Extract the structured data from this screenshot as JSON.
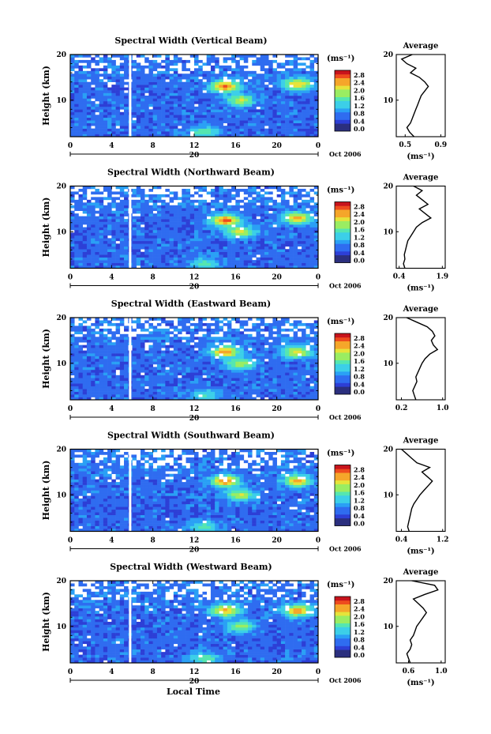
{
  "figure": {
    "ylabel": "Height (km)",
    "xlabel": "Local Time",
    "date_label": "Oct 2006",
    "day_label": "20",
    "colorbar_unit": "(ms⁻¹)",
    "colorbar_ticks": [
      "2.8",
      "2.4",
      "2.0",
      "1.6",
      "1.2",
      "0.8",
      "0.4",
      "0.0"
    ],
    "x_ticks": [
      "0",
      "4",
      "8",
      "12",
      "16",
      "20",
      "0"
    ],
    "y_ticks": [
      "20",
      "10"
    ],
    "avg_title": "Average",
    "avg_xlabel": "(ms⁻¹)"
  },
  "colors": {
    "scale": [
      "#2b2f7e",
      "#2d3fd6",
      "#2f6cf0",
      "#2aa0f5",
      "#3ccfe8",
      "#55e6b0",
      "#9aed62",
      "#e6e33a",
      "#f5a62a",
      "#ee4b1e",
      "#c8141c"
    ]
  },
  "chart_data": [
    {
      "type": "heatmap",
      "title": "Spectral Width (Vertical Beam)",
      "xlabel": "Local Time",
      "ylabel": "Height (km)",
      "xlim": [
        0,
        24
      ],
      "ylim": [
        2,
        20
      ],
      "colorbar": {
        "label": "(ms⁻¹)",
        "range": [
          0.0,
          3.0
        ],
        "ticks": [
          0.0,
          0.4,
          0.8,
          1.2,
          1.6,
          2.0,
          2.4,
          2.8
        ]
      },
      "data_gap_hour": 5.8,
      "hotspots": [
        {
          "x": 15.0,
          "y": 13.0,
          "v": 2.6
        },
        {
          "x": 16.5,
          "y": 10.0,
          "v": 2.0
        },
        {
          "x": 22.0,
          "y": 13.5,
          "v": 2.3
        },
        {
          "x": 13.0,
          "y": 3.0,
          "v": 1.6
        }
      ],
      "average_profile": {
        "xlabel": "(ms⁻¹)",
        "xticks": [
          "0.5",
          "0.9"
        ],
        "xlim": [
          0.4,
          0.95
        ],
        "yticks": [
          "20",
          "10"
        ],
        "heights": [
          2,
          3,
          4,
          5,
          6,
          7,
          8,
          9,
          10,
          11,
          12,
          13,
          14,
          15,
          16,
          17,
          18,
          19,
          20
        ],
        "values": [
          0.6,
          0.55,
          0.52,
          0.56,
          0.58,
          0.6,
          0.62,
          0.64,
          0.66,
          0.68,
          0.72,
          0.76,
          0.72,
          0.66,
          0.56,
          0.62,
          0.52,
          0.46,
          0.58
        ]
      }
    },
    {
      "type": "heatmap",
      "title": "Spectral Width (Northward Beam)",
      "xlabel": "Local Time",
      "ylabel": "Height (km)",
      "xlim": [
        0,
        24
      ],
      "ylim": [
        2,
        20
      ],
      "colorbar": {
        "label": "(ms⁻¹)",
        "range": [
          0.0,
          3.0
        ],
        "ticks": [
          0.0,
          0.4,
          0.8,
          1.2,
          1.6,
          2.0,
          2.4,
          2.8
        ]
      },
      "data_gap_hour": 5.8,
      "hotspots": [
        {
          "x": 15.0,
          "y": 12.5,
          "v": 2.7
        },
        {
          "x": 16.5,
          "y": 10.0,
          "v": 2.1
        },
        {
          "x": 22.0,
          "y": 13.0,
          "v": 2.4
        },
        {
          "x": 13.0,
          "y": 3.0,
          "v": 1.5
        }
      ],
      "average_profile": {
        "xlabel": "(ms⁻¹)",
        "xticks": [
          "0.4",
          "1.9"
        ],
        "xlim": [
          0.3,
          2.0
        ],
        "yticks": [
          "20",
          "10"
        ],
        "heights": [
          2,
          3,
          4,
          5,
          6,
          7,
          8,
          9,
          10,
          11,
          12,
          13,
          14,
          15,
          16,
          17,
          18,
          19,
          20
        ],
        "values": [
          0.6,
          0.55,
          0.6,
          0.58,
          0.62,
          0.66,
          0.7,
          0.8,
          0.9,
          1.0,
          1.2,
          1.5,
          1.3,
          1.1,
          1.4,
          1.2,
          1.0,
          1.2,
          0.9
        ]
      }
    },
    {
      "type": "heatmap",
      "title": "Spectral Width (Eastward Beam)",
      "xlabel": "Local Time",
      "ylabel": "Height (km)",
      "xlim": [
        0,
        24
      ],
      "ylim": [
        2,
        20
      ],
      "colorbar": {
        "label": "(ms⁻¹)",
        "range": [
          0.0,
          3.0
        ],
        "ticks": [
          0.0,
          0.4,
          0.8,
          1.2,
          1.6,
          2.0,
          2.4,
          2.8
        ]
      },
      "data_gap_hour": 5.8,
      "hotspots": [
        {
          "x": 15.0,
          "y": 12.5,
          "v": 2.5
        },
        {
          "x": 16.5,
          "y": 10.0,
          "v": 1.9
        },
        {
          "x": 22.0,
          "y": 12.5,
          "v": 2.2
        },
        {
          "x": 13.0,
          "y": 3.0,
          "v": 1.4
        }
      ],
      "average_profile": {
        "xlabel": "",
        "xticks": [
          "0.2",
          "1.0"
        ],
        "xlim": [
          0.1,
          1.05
        ],
        "yticks": [
          "20",
          "10"
        ],
        "heights": [
          2,
          3,
          4,
          5,
          6,
          7,
          8,
          9,
          10,
          11,
          12,
          13,
          14,
          15,
          16,
          17,
          18,
          19,
          20
        ],
        "values": [
          0.48,
          0.45,
          0.42,
          0.46,
          0.5,
          0.48,
          0.52,
          0.56,
          0.6,
          0.66,
          0.75,
          0.9,
          0.82,
          0.78,
          0.85,
          0.8,
          0.7,
          0.5,
          0.3
        ]
      }
    },
    {
      "type": "heatmap",
      "title": "Spectral Width (Southward Beam)",
      "xlabel": "Local Time",
      "ylabel": "Height (km)",
      "xlim": [
        0,
        24
      ],
      "ylim": [
        2,
        20
      ],
      "colorbar": {
        "label": "(ms⁻¹)",
        "range": [
          0.0,
          3.0
        ],
        "ticks": [
          0.0,
          0.4,
          0.8,
          1.2,
          1.6,
          2.0,
          2.4,
          2.8
        ]
      },
      "data_gap_hour": 5.8,
      "hotspots": [
        {
          "x": 15.0,
          "y": 13.0,
          "v": 2.6
        },
        {
          "x": 16.5,
          "y": 10.0,
          "v": 2.0
        },
        {
          "x": 22.0,
          "y": 13.0,
          "v": 2.3
        },
        {
          "x": 13.0,
          "y": 3.0,
          "v": 1.5
        }
      ],
      "average_profile": {
        "xlabel": "(ms⁻¹)",
        "xticks": [
          "0.4",
          "1.2"
        ],
        "xlim": [
          0.3,
          1.25
        ],
        "yticks": [
          "20",
          "10"
        ],
        "heights": [
          2,
          3,
          4,
          5,
          6,
          7,
          8,
          9,
          10,
          11,
          12,
          13,
          14,
          15,
          16,
          17,
          18,
          19,
          20
        ],
        "values": [
          0.55,
          0.52,
          0.54,
          0.56,
          0.58,
          0.6,
          0.64,
          0.7,
          0.76,
          0.84,
          0.92,
          1.0,
          0.9,
          0.8,
          0.95,
          0.7,
          0.6,
          0.5,
          0.4
        ]
      }
    },
    {
      "type": "heatmap",
      "title": "Spectral Width (Westward Beam)",
      "xlabel": "Local Time",
      "ylabel": "Height (km)",
      "xlim": [
        0,
        24
      ],
      "ylim": [
        2,
        20
      ],
      "colorbar": {
        "label": "(ms⁻¹)",
        "range": [
          0.0,
          3.0
        ],
        "ticks": [
          0.0,
          0.4,
          0.8,
          1.2,
          1.6,
          2.0,
          2.4,
          2.8
        ]
      },
      "data_gap_hour": 5.8,
      "hotspots": [
        {
          "x": 15.0,
          "y": 13.5,
          "v": 2.4
        },
        {
          "x": 16.5,
          "y": 10.0,
          "v": 1.8
        },
        {
          "x": 22.0,
          "y": 13.5,
          "v": 2.5
        },
        {
          "x": 13.0,
          "y": 3.0,
          "v": 1.6
        }
      ],
      "average_profile": {
        "xlabel": "(ms⁻¹)",
        "xticks": [
          "0.6",
          "1.0"
        ],
        "xlim": [
          0.45,
          1.05
        ],
        "yticks": [
          "20",
          "10"
        ],
        "heights": [
          2,
          3,
          4,
          5,
          6,
          7,
          8,
          9,
          10,
          11,
          12,
          13,
          14,
          15,
          16,
          17,
          18,
          19,
          20
        ],
        "values": [
          0.62,
          0.6,
          0.58,
          0.62,
          0.64,
          0.62,
          0.66,
          0.68,
          0.7,
          0.74,
          0.78,
          0.82,
          0.78,
          0.72,
          0.66,
          0.8,
          0.96,
          0.92,
          0.64
        ]
      }
    }
  ]
}
